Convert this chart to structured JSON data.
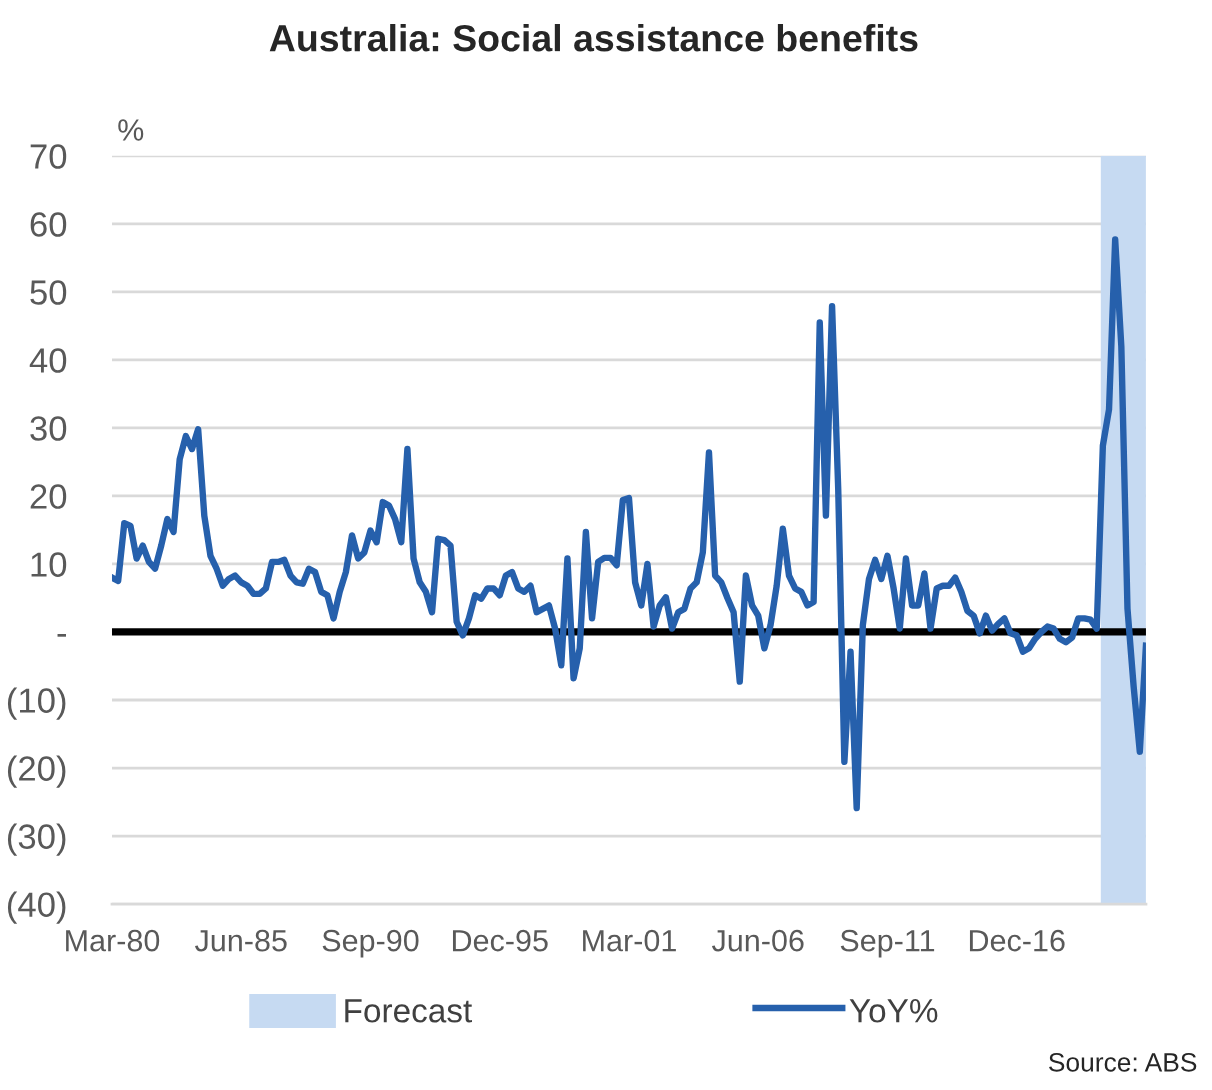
{
  "chart_data": {
    "type": "line",
    "title": "Australia: Social assistance benefits",
    "ylabel": "%",
    "x": [
      "1980-03",
      "1980-06",
      "1980-09",
      "1980-12",
      "1981-03",
      "1981-06",
      "1981-09",
      "1981-12",
      "1982-03",
      "1982-06",
      "1982-09",
      "1982-12",
      "1983-03",
      "1983-06",
      "1983-09",
      "1983-12",
      "1984-03",
      "1984-06",
      "1984-09",
      "1984-12",
      "1985-03",
      "1985-06",
      "1985-09",
      "1985-12",
      "1986-03",
      "1986-06",
      "1986-09",
      "1986-12",
      "1987-03",
      "1987-06",
      "1987-09",
      "1987-12",
      "1988-03",
      "1988-06",
      "1988-09",
      "1988-12",
      "1989-03",
      "1989-06",
      "1989-09",
      "1989-12",
      "1990-03",
      "1990-06",
      "1990-09",
      "1990-12",
      "1991-03",
      "1991-06",
      "1991-09",
      "1991-12",
      "1992-03",
      "1992-06",
      "1992-09",
      "1992-12",
      "1993-03",
      "1993-06",
      "1993-09",
      "1993-12",
      "1994-03",
      "1994-06",
      "1994-09",
      "1994-12",
      "1995-03",
      "1995-06",
      "1995-09",
      "1995-12",
      "1996-03",
      "1996-06",
      "1996-09",
      "1996-12",
      "1997-03",
      "1997-06",
      "1997-09",
      "1997-12",
      "1998-03",
      "1998-06",
      "1998-09",
      "1998-12",
      "1999-03",
      "1999-06",
      "1999-09",
      "1999-12",
      "2000-03",
      "2000-06",
      "2000-09",
      "2000-12",
      "2001-03",
      "2001-06",
      "2001-09",
      "2001-12",
      "2002-03",
      "2002-06",
      "2002-09",
      "2002-12",
      "2003-03",
      "2003-06",
      "2003-09",
      "2003-12",
      "2004-03",
      "2004-06",
      "2004-09",
      "2004-12",
      "2005-03",
      "2005-06",
      "2005-09",
      "2005-12",
      "2006-03",
      "2006-06",
      "2006-09",
      "2006-12",
      "2007-03",
      "2007-06",
      "2007-09",
      "2007-12",
      "2008-03",
      "2008-06",
      "2008-09",
      "2008-12",
      "2009-03",
      "2009-06",
      "2009-09",
      "2009-12",
      "2010-03",
      "2010-06",
      "2010-09",
      "2010-12",
      "2011-03",
      "2011-06",
      "2011-09",
      "2011-12",
      "2012-03",
      "2012-06",
      "2012-09",
      "2012-12",
      "2013-03",
      "2013-06",
      "2013-09",
      "2013-12",
      "2014-03",
      "2014-06",
      "2014-09",
      "2014-12",
      "2015-03",
      "2015-06",
      "2015-09",
      "2015-12",
      "2016-03",
      "2016-06",
      "2016-09",
      "2016-12",
      "2017-03",
      "2017-06",
      "2017-09",
      "2017-12",
      "2018-03",
      "2018-06",
      "2018-09",
      "2018-12",
      "2019-03",
      "2019-06",
      "2019-09",
      "2019-12",
      "2020-03",
      "2020-06",
      "2020-09",
      "2020-12",
      "2021-03",
      "2021-06",
      "2021-09",
      "2021-12",
      "2022-03"
    ],
    "series": [
      {
        "name": "YoY%",
        "color": "#2660ac",
        "values": [
          8.0,
          7.5,
          16.0,
          15.6,
          10.8,
          12.7,
          10.3,
          9.3,
          12.7,
          16.6,
          14.7,
          25.4,
          28.8,
          26.9,
          29.8,
          17.1,
          11.2,
          9.3,
          6.8,
          7.8,
          8.3,
          7.3,
          6.8,
          5.6,
          5.6,
          6.4,
          10.3,
          10.3,
          10.6,
          8.3,
          7.3,
          7.1,
          9.3,
          8.8,
          5.9,
          5.4,
          2.0,
          5.9,
          8.8,
          14.2,
          10.8,
          11.7,
          14.9,
          13.2,
          19.1,
          18.6,
          16.6,
          13.2,
          26.9,
          10.8,
          7.3,
          5.9,
          2.9,
          13.7,
          13.5,
          12.7,
          1.5,
          -0.5,
          2.0,
          5.4,
          4.9,
          6.4,
          6.4,
          5.4,
          8.3,
          8.8,
          6.4,
          5.9,
          6.8,
          2.9,
          3.4,
          3.9,
          0.5,
          -4.9,
          10.8,
          -6.8,
          -2.4,
          14.7,
          2.0,
          10.3,
          10.9,
          10.9,
          9.8,
          19.4,
          19.7,
          7.3,
          3.9,
          10.0,
          0.8,
          3.9,
          5.1,
          0.5,
          2.9,
          3.4,
          6.4,
          7.3,
          11.7,
          26.4,
          8.3,
          7.3,
          5.0,
          2.9,
          -7.3,
          8.3,
          3.9,
          2.4,
          -2.4,
          1.0,
          6.8,
          15.2,
          8.3,
          6.4,
          5.9,
          3.9,
          4.4,
          45.5,
          17.1,
          47.9,
          21.0,
          -19.1,
          -2.9,
          -25.9,
          1.0,
          7.8,
          10.6,
          7.8,
          11.2,
          6.4,
          0.5,
          10.8,
          3.9,
          3.9,
          8.6,
          0.5,
          6.4,
          6.8,
          6.8,
          8.0,
          5.9,
          3.1,
          2.4,
          -0.2,
          2.4,
          0.2,
          1.2,
          2.0,
          -0.2,
          -0.5,
          -2.9,
          -2.4,
          -1.0,
          0.0,
          0.8,
          0.5,
          -1.0,
          -1.5,
          -0.8,
          2.0,
          2.0,
          1.8,
          0.5,
          27.4,
          32.7,
          57.7,
          42.0,
          3.4,
          -8.0,
          -17.6,
          -2.0
        ]
      }
    ],
    "xlim": [
      "1980-03",
      "2022-03"
    ],
    "xticks": [
      {
        "value": "1980-03",
        "label": "Mar-80"
      },
      {
        "value": "1985-06",
        "label": "Jun-85"
      },
      {
        "value": "1990-09",
        "label": "Sep-90"
      },
      {
        "value": "1995-12",
        "label": "Dec-95"
      },
      {
        "value": "2001-03",
        "label": "Mar-01"
      },
      {
        "value": "2006-06",
        "label": "Jun-06"
      },
      {
        "value": "2011-09",
        "label": "Sep-11"
      },
      {
        "value": "2016-12",
        "label": "Dec-16"
      }
    ],
    "ylim": [
      -40,
      70
    ],
    "yticks": [
      70,
      60,
      50,
      40,
      30,
      20,
      10,
      {
        "value": 0,
        "label": "-"
      },
      {
        "value": -10,
        "label": "(10)"
      },
      {
        "value": -20,
        "label": "(20)"
      },
      {
        "value": -30,
        "label": "(30)"
      },
      {
        "value": -40,
        "label": "(40)"
      }
    ],
    "bands": [
      {
        "axis": "x",
        "from": "2020-05",
        "to": "2022-03",
        "label": "Forecast",
        "color": "#c6daf2"
      }
    ],
    "ref_lines": [
      {
        "axis": "y",
        "value": 0,
        "color": "#000000"
      }
    ],
    "grid": "y",
    "legend": "bottom",
    "line_style": "solid",
    "marker": "none",
    "annotations": [
      "Source: ABS"
    ]
  }
}
